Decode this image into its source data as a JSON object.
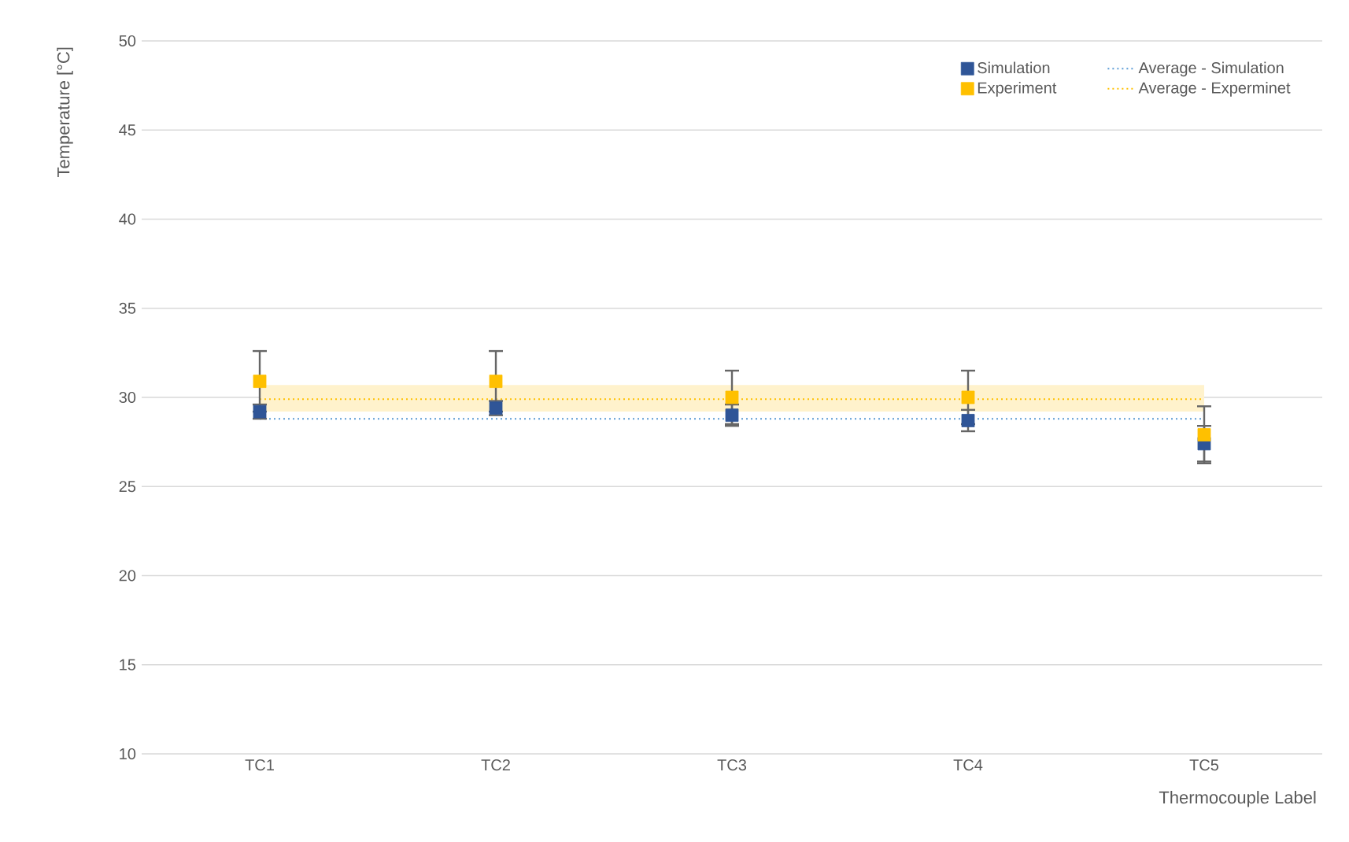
{
  "chart_data": {
    "type": "scatter",
    "categories": [
      "TC1",
      "TC2",
      "TC3",
      "TC4",
      "TC5"
    ],
    "series": [
      {
        "name": "Simulation",
        "color": "#2f5597",
        "values": [
          29.2,
          29.4,
          29.0,
          28.7,
          27.4
        ],
        "errors": [
          0.4,
          0.4,
          0.6,
          0.6,
          1.0
        ]
      },
      {
        "name": "Experiment",
        "color": "#ffc000",
        "values": [
          30.9,
          30.9,
          30.0,
          30.0,
          27.9
        ],
        "errors": [
          1.7,
          1.7,
          1.5,
          1.5,
          1.6
        ]
      }
    ],
    "ylim": [
      10,
      50
    ],
    "yticks": [
      10,
      15,
      20,
      25,
      30,
      35,
      40,
      45,
      50
    ],
    "xlabel": "Thermocouple Label",
    "ylabel": "Temperature [°C]",
    "ref_lines": [
      {
        "axis": "y",
        "value": 28.8,
        "label": "Average - Simulation",
        "color": "#5b9bd5",
        "line_style": "dotted"
      },
      {
        "axis": "y",
        "value": 29.9,
        "label": "Average - Experminet",
        "color": "#ffc000",
        "line_style": "dotted"
      }
    ],
    "bands": [
      {
        "axis": "y",
        "from": 29.2,
        "to": 30.7,
        "color": "#fff2cc"
      }
    ],
    "grid": "y",
    "legend": "top right",
    "marker": "square"
  }
}
